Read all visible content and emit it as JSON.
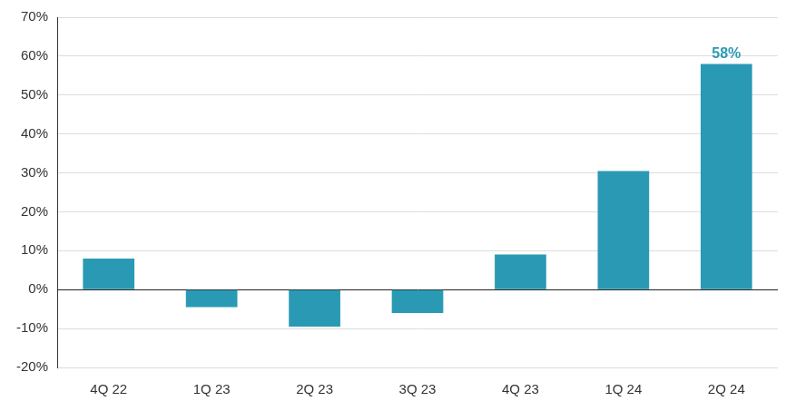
{
  "chart_data": {
    "type": "bar",
    "categories": [
      "4Q 22",
      "1Q 23",
      "2Q 23",
      "3Q 23",
      "4Q 23",
      "1Q 24",
      "2Q 24"
    ],
    "values": [
      8,
      -4.5,
      -9.5,
      -6,
      9,
      30.5,
      58
    ],
    "value_labels": [
      null,
      null,
      null,
      null,
      null,
      null,
      "58%"
    ],
    "data_labels": true,
    "color": "#2a9ab4",
    "ylim": [
      -20,
      70
    ],
    "yticks": [
      {
        "value": -20,
        "label": "-20%"
      },
      {
        "value": -10,
        "label": "-10%"
      },
      {
        "value": 0,
        "label": "0%"
      },
      {
        "value": 10,
        "label": "10%"
      },
      {
        "value": 20,
        "label": "20%"
      },
      {
        "value": 30,
        "label": "30%"
      },
      {
        "value": 40,
        "label": "40%"
      },
      {
        "value": 50,
        "label": "50%"
      },
      {
        "value": 60,
        "label": "60%"
      },
      {
        "value": 70,
        "label": "70%"
      }
    ],
    "grid": true
  }
}
